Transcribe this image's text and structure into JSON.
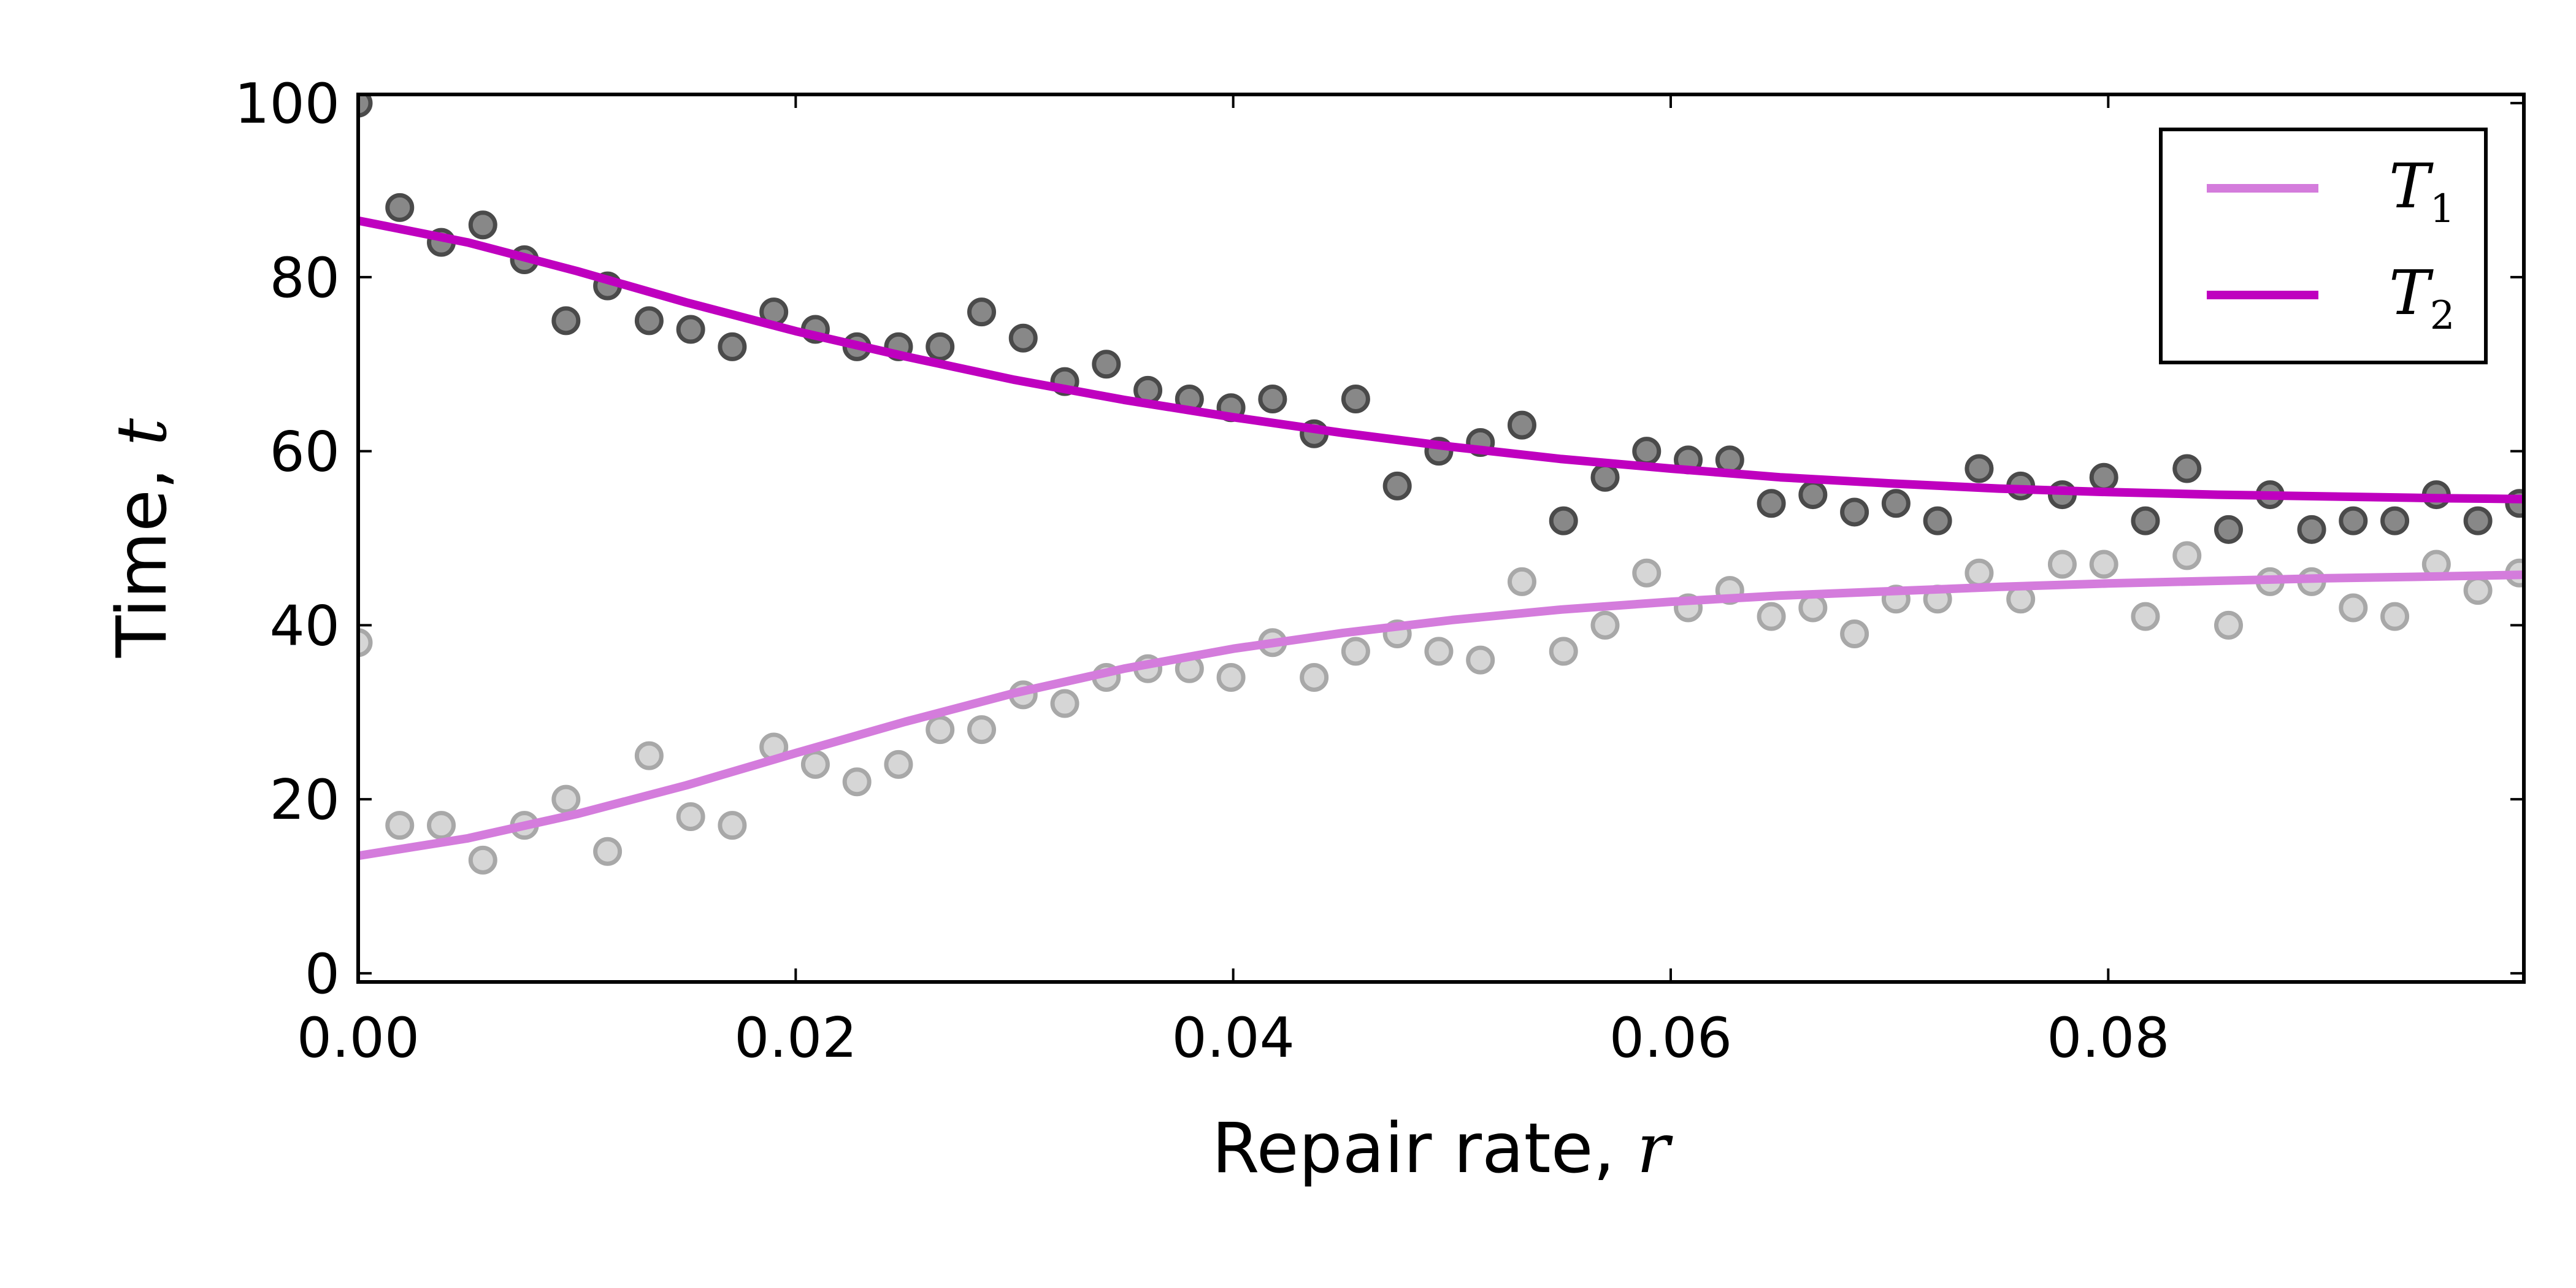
{
  "chart_data": {
    "type": "scatter",
    "title": "",
    "xlabel": "Repair rate, ",
    "xlabel_var": "r",
    "ylabel": "Time, ",
    "ylabel_var": "t",
    "xlim": [
      0.0,
      0.099
    ],
    "ylim": [
      -1,
      101
    ],
    "x_ticks": [
      0.0,
      0.02,
      0.04,
      0.06,
      0.08
    ],
    "x_tick_labels": [
      "0.00",
      "0.02",
      "0.04",
      "0.06",
      "0.08"
    ],
    "y_ticks": [
      0,
      20,
      40,
      60,
      80,
      100
    ],
    "y_tick_labels": [
      "0",
      "20",
      "40",
      "60",
      "80",
      "100"
    ],
    "grid": false,
    "legend_position": "top-right",
    "x": [
      0.0,
      0.0019,
      0.0038,
      0.0057,
      0.0076,
      0.0095,
      0.0114,
      0.0133,
      0.0152,
      0.0171,
      0.019,
      0.0209,
      0.0228,
      0.0247,
      0.0266,
      0.0285,
      0.0304,
      0.0323,
      0.0342,
      0.0361,
      0.038,
      0.0399,
      0.0418,
      0.0437,
      0.0456,
      0.0475,
      0.0494,
      0.0513,
      0.0532,
      0.0551,
      0.057,
      0.0589,
      0.0608,
      0.0627,
      0.0646,
      0.0665,
      0.0684,
      0.0703,
      0.0722,
      0.0741,
      0.076,
      0.0779,
      0.0798,
      0.0817,
      0.0836,
      0.0855,
      0.0874,
      0.0893,
      0.0912,
      0.0931,
      0.095,
      0.0969,
      0.0988
    ],
    "series": [
      {
        "name": "T1",
        "label_base": "T",
        "label_sub": "1",
        "color": "#d47cdc",
        "point_fill": "#cfcfcf",
        "point_stroke": "#a8a8a8",
        "points": [
          38,
          17,
          17,
          13,
          17,
          20,
          14,
          25,
          18,
          17,
          26,
          24,
          22,
          24,
          28,
          28,
          32,
          31,
          34,
          35,
          35,
          34,
          38,
          34,
          37,
          39,
          37,
          36,
          45,
          37,
          40,
          46,
          42,
          44,
          41,
          42,
          39,
          43,
          43,
          46,
          43,
          47,
          47,
          41,
          48,
          40,
          45,
          45,
          42,
          41,
          47,
          44,
          46
        ],
        "fit_x": [
          0.0,
          0.005,
          0.01,
          0.015,
          0.02,
          0.025,
          0.03,
          0.035,
          0.04,
          0.045,
          0.05,
          0.055,
          0.06,
          0.065,
          0.07,
          0.075,
          0.08,
          0.085,
          0.09,
          0.095,
          0.099
        ],
        "fit_y": [
          13.5,
          15.5,
          18.3,
          21.6,
          25.3,
          28.9,
          32.2,
          35.0,
          37.3,
          39.1,
          40.6,
          41.8,
          42.7,
          43.4,
          43.9,
          44.4,
          44.8,
          45.1,
          45.4,
          45.6,
          45.8
        ]
      },
      {
        "name": "T2",
        "label_base": "T",
        "label_sub": "2",
        "color": "#bf00bf",
        "point_fill": "#888888",
        "point_stroke": "#4a4a4a",
        "points": [
          100,
          88,
          84,
          86,
          82,
          75,
          79,
          75,
          74,
          72,
          76,
          74,
          72,
          72,
          72,
          76,
          73,
          68,
          70,
          67,
          66,
          65,
          66,
          62,
          66,
          56,
          60,
          61,
          63,
          52,
          57,
          60,
          59,
          59,
          54,
          55,
          53,
          54,
          52,
          58,
          56,
          55,
          57,
          52,
          58,
          51,
          55,
          51,
          52,
          52,
          55,
          52,
          54
        ],
        "fit_x": [
          0.0,
          0.005,
          0.01,
          0.015,
          0.02,
          0.025,
          0.03,
          0.035,
          0.04,
          0.045,
          0.05,
          0.055,
          0.06,
          0.065,
          0.07,
          0.075,
          0.08,
          0.085,
          0.09,
          0.095,
          0.099
        ],
        "fit_y": [
          86.5,
          84.0,
          80.7,
          77.1,
          73.8,
          70.9,
          68.2,
          65.9,
          63.9,
          62.1,
          60.5,
          59.1,
          58.0,
          57.0,
          56.3,
          55.7,
          55.3,
          55.0,
          54.8,
          54.6,
          54.5
        ]
      }
    ]
  }
}
